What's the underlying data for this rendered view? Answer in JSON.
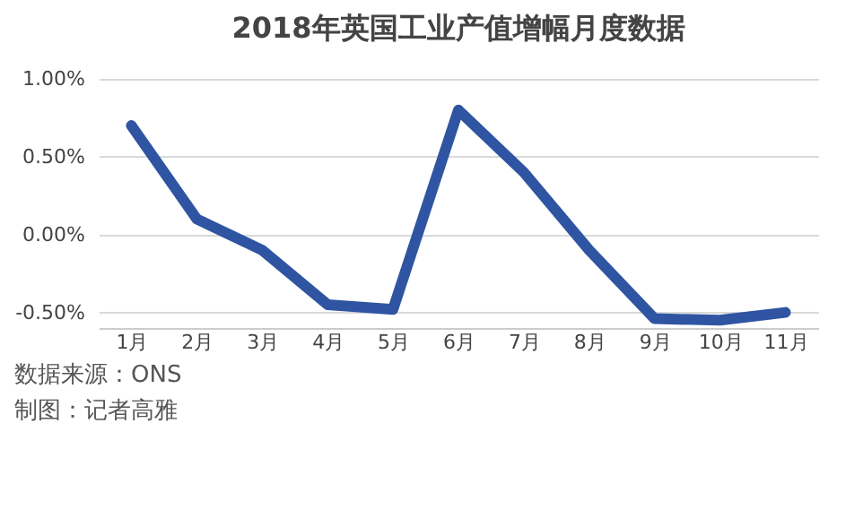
{
  "chart_data": {
    "type": "line",
    "title": "2018年英国工业产值增幅月度数据",
    "categories": [
      "1月",
      "2月",
      "3月",
      "4月",
      "5月",
      "6月",
      "7月",
      "8月",
      "9月",
      "10月",
      "11月"
    ],
    "series": [
      {
        "color": "#2f55a2",
        "values": [
          0.7,
          0.1,
          -0.1,
          -0.45,
          -0.48,
          0.8,
          0.4,
          -0.1,
          -0.54,
          -0.55,
          -0.5
        ]
      }
    ],
    "ylim": [
      -0.6,
      1.0
    ],
    "yticks": [
      {
        "value": -0.5,
        "label": "-0.50%"
      },
      {
        "value": 0,
        "label": "0.00%"
      },
      {
        "value": 0.5,
        "label": "0.50%"
      },
      {
        "value": 1.0,
        "label": "1.00%"
      }
    ],
    "grid": "y",
    "legend": false,
    "marker": "none",
    "line_style": "solid",
    "annotations": [
      "数据来源：ONS",
      "制图：记者高雅"
    ]
  }
}
